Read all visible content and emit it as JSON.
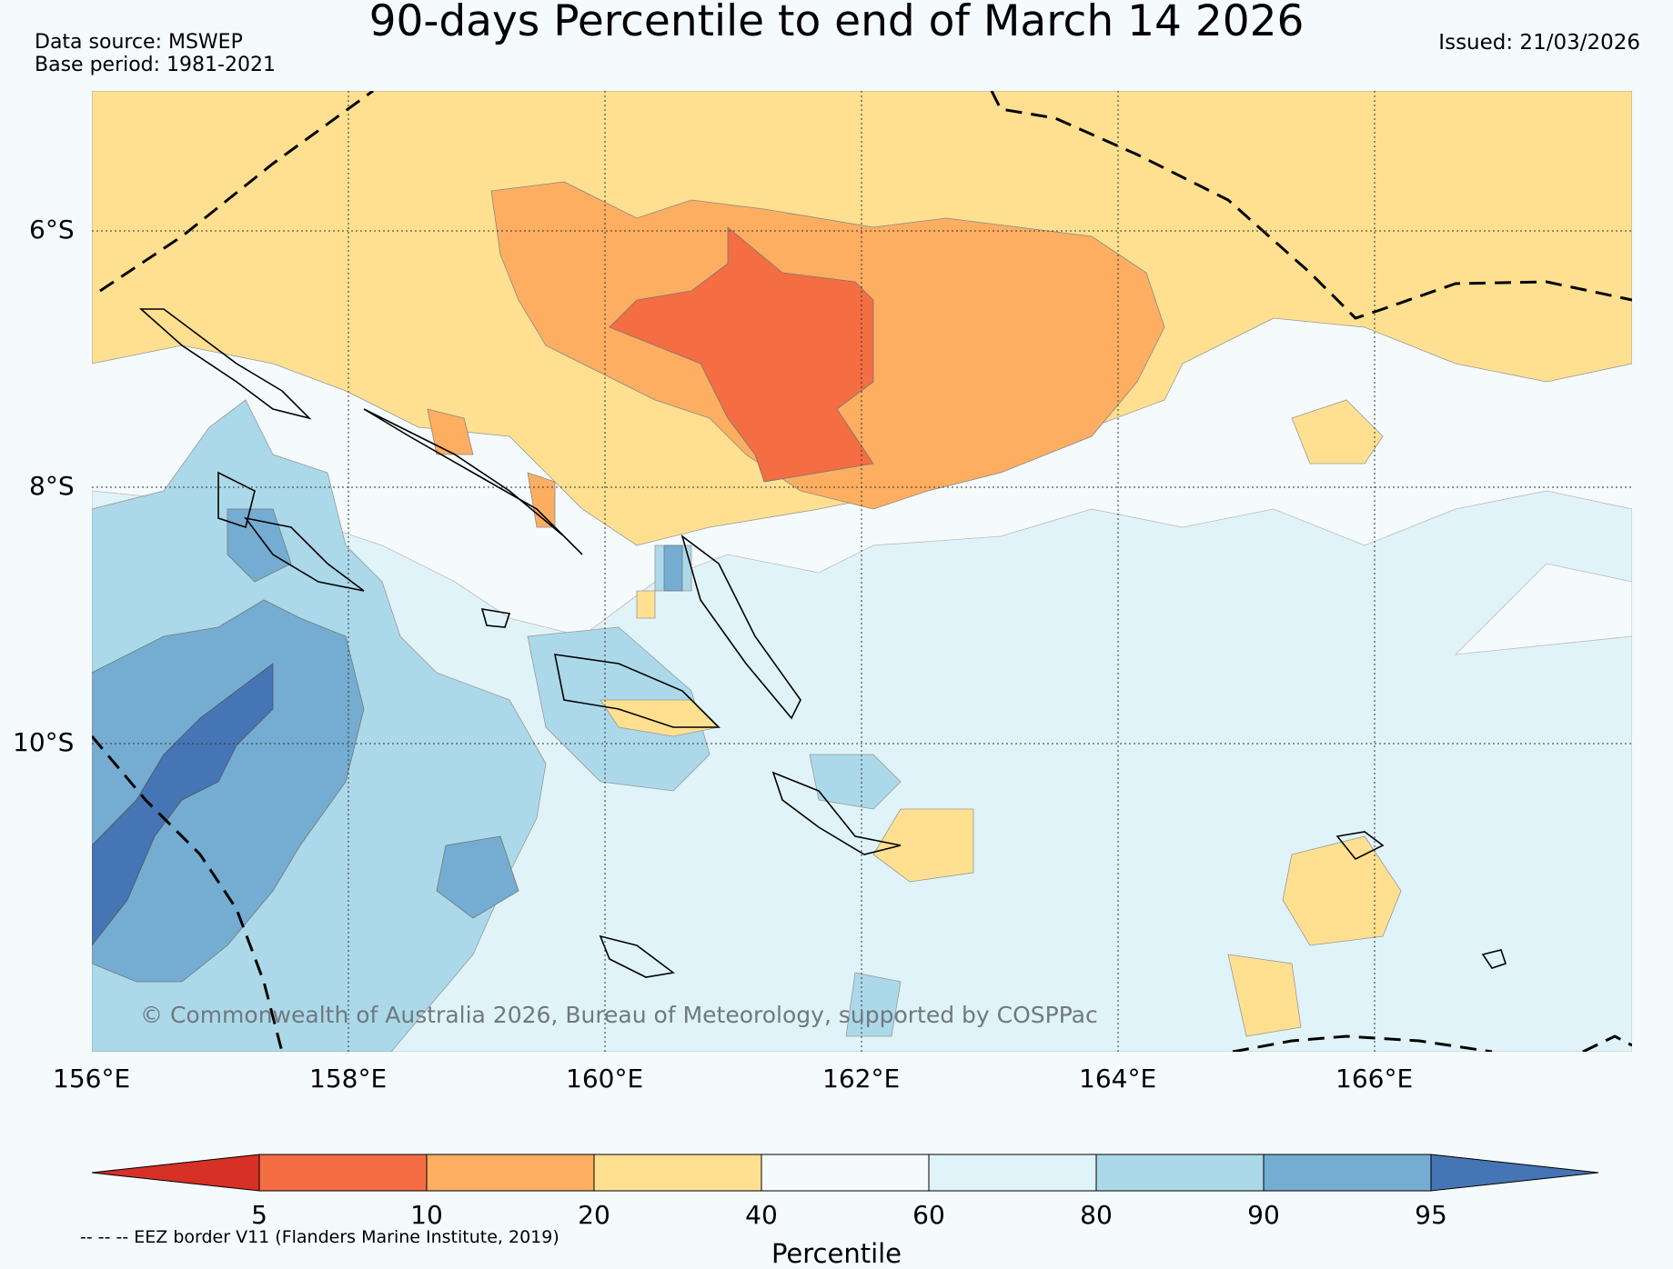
{
  "header": {
    "title": "90-days Percentile to end of March 14 2026",
    "data_source": "Data source: MSWEP",
    "base_period": "Base period: 1981-2021",
    "issued": "Issued: 21/03/2026"
  },
  "map": {
    "lon_labels": [
      "156°E",
      "158°E",
      "160°E",
      "162°E",
      "164°E",
      "166°E"
    ],
    "lat_labels": [
      "6°S",
      "8°S",
      "10°S"
    ],
    "copyright": "© Commonwealth of Australia 2026, Bureau of Meteorology, supported by COSPPac",
    "colors": {
      "below_5": "#d73027",
      "p5_10": "#f46d43",
      "p10_20": "#fdae61",
      "p20_40": "#fee090",
      "p40_60": "#f5fafd",
      "p60_80": "#e0f3f8",
      "p80_90": "#abd9e9",
      "p90_95": "#74add1",
      "above_95": "#4575b4"
    }
  },
  "colorbar": {
    "title": "Percentile",
    "ticks": [
      "5",
      "10",
      "20",
      "40",
      "60",
      "80",
      "90",
      "95"
    ],
    "eez_note": "-- -- -- EEZ border V11 (Flanders Marine Institute, 2019)"
  }
}
